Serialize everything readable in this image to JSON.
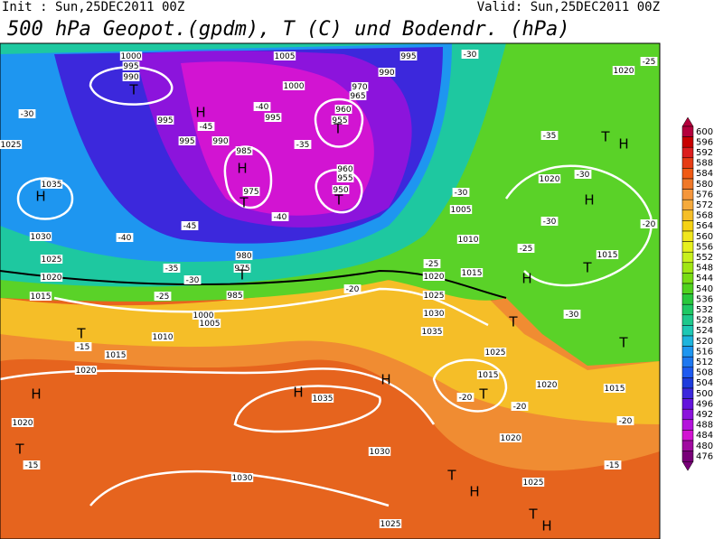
{
  "header": {
    "init": "Init : Sun,25DEC2011 00Z",
    "valid": "Valid: Sun,25DEC2011 00Z",
    "title": "500 hPa Geopot.(gpdm), T (C) und Bodendr. (hPa)"
  },
  "colorbar": {
    "labels": [
      "600",
      "596",
      "592",
      "588",
      "584",
      "580",
      "576",
      "572",
      "568",
      "564",
      "560",
      "556",
      "552",
      "548",
      "544",
      "540",
      "536",
      "532",
      "528",
      "524",
      "520",
      "516",
      "512",
      "508",
      "504",
      "500",
      "496",
      "492",
      "488",
      "484",
      "480",
      "476"
    ],
    "colors": [
      "#b4003c",
      "#c80000",
      "#dc1e1e",
      "#e63c14",
      "#f05a14",
      "#f07828",
      "#f5963c",
      "#f5aa3c",
      "#f5be28",
      "#f5d214",
      "#f0e61e",
      "#e6f01e",
      "#c8f01e",
      "#a0e614",
      "#78dc14",
      "#50d21e",
      "#28c83c",
      "#1ec864",
      "#1ec88c",
      "#1ec8b4",
      "#1eb4dc",
      "#1e96f0",
      "#1e78f0",
      "#1e5af0",
      "#1e3cdc",
      "#3c28dc",
      "#6414dc",
      "#8c14dc",
      "#b414dc",
      "#d214d2",
      "#a00aa0",
      "#780078"
    ]
  },
  "map_labels": [
    "1000",
    "995",
    "990",
    "T",
    "995",
    "H",
    "995",
    "990",
    "985",
    "H",
    "975",
    "T",
    "1005",
    "1000",
    "995",
    "-40",
    "-45",
    "970",
    "965",
    "960",
    "955",
    "T",
    "960",
    "955",
    "950",
    "T",
    "-35",
    "-40",
    "-45",
    "1035",
    "H",
    "1030",
    "1025",
    "1020",
    "1015",
    "-30",
    "-40",
    "-35",
    "-30",
    "-25",
    "980",
    "975",
    "T",
    "985",
    "1000",
    "1005",
    "1010",
    "1015",
    "1020",
    "T",
    "-15",
    "H",
    "1020",
    "T",
    "-15",
    "H",
    "1035",
    "H",
    "1030",
    "1030",
    "1025",
    "-20",
    "1025",
    "1030",
    "1035",
    "1020",
    "-25",
    "1015",
    "1010",
    "1005",
    "-30",
    "1020",
    "H",
    "-30",
    "-25",
    "H",
    "T",
    "1015",
    "-20",
    "-35",
    "T",
    "H",
    "-30",
    "T",
    "1025",
    "-30",
    "1015",
    "T",
    "-20",
    "-20",
    "1020",
    "1015",
    "T",
    "-20",
    "1020",
    "T",
    "H",
    "1025",
    "-15",
    "T",
    "H",
    "1020",
    "-25",
    "-30",
    "995",
    "990",
    "1025"
  ]
}
